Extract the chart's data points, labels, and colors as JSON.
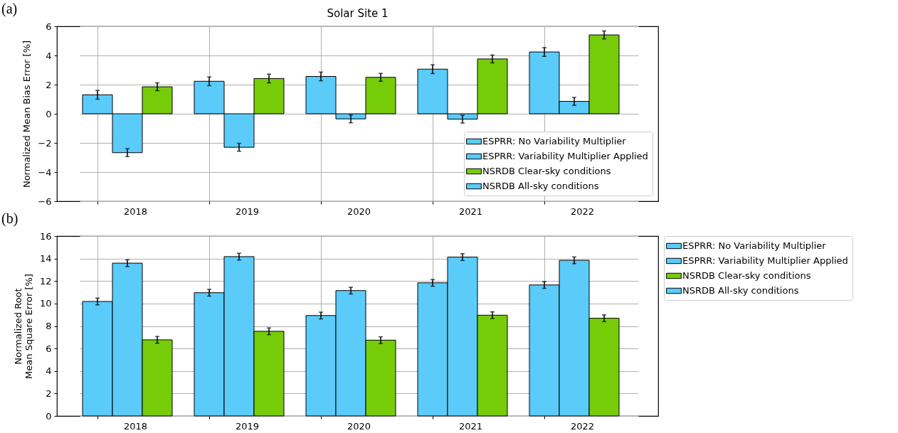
{
  "chart_data": [
    {
      "type": "bar",
      "title": "Solar Site 1",
      "ylabel": "Normalized Mean Bias Error [%]",
      "annotations": [
        "(a)"
      ],
      "categories": [
        "2018",
        "2019",
        "2020",
        "2021",
        "2022"
      ],
      "series": [
        {
          "name": "ESPRR: No Variability Multiplier",
          "color": "#5bcbfa",
          "values": [
            1.3,
            2.23,
            2.56,
            3.06,
            4.24
          ],
          "errors": [
            0.3,
            0.3,
            0.3,
            0.3,
            0.3
          ]
        },
        {
          "name": "ESPRR: Variability Multiplier Applied",
          "color": "#5bcbfa",
          "values": [
            -2.67,
            -2.3,
            -0.35,
            -0.37,
            0.85
          ],
          "errors": [
            0.27,
            0.27,
            0.27,
            0.27,
            0.27
          ]
        },
        {
          "name": "NSRDB Clear-sky conditions",
          "color": "#77cc0a",
          "values": [
            1.85,
            2.42,
            2.5,
            3.76,
            5.41
          ],
          "errors": [
            0.27,
            0.3,
            0.27,
            0.27,
            0.27
          ]
        },
        {
          "name": "NSRDB All-sky conditions",
          "color": "#5bcbfa",
          "values": [
            null,
            null,
            null,
            null,
            null
          ]
        }
      ],
      "ylim": [
        -6,
        6
      ],
      "yticks": [
        -6,
        -4,
        -2,
        0,
        2,
        4,
        6
      ],
      "grid": true,
      "legend": "bottom right"
    },
    {
      "type": "bar",
      "ylabel": "Normalized Root\nMean Square Error [%]",
      "annotations": [
        "(b)"
      ],
      "categories": [
        "2018",
        "2019",
        "2020",
        "2021",
        "2022"
      ],
      "series": [
        {
          "name": "ESPRR: No Variability Multiplier",
          "color": "#5bcbfa",
          "values": [
            10.18,
            10.96,
            8.93,
            11.84,
            11.65
          ],
          "errors": [
            0.3,
            0.3,
            0.3,
            0.3,
            0.3
          ]
        },
        {
          "name": "ESPRR: Variability Multiplier Applied",
          "color": "#5bcbfa",
          "values": [
            13.59,
            14.17,
            11.15,
            14.13,
            13.84
          ],
          "errors": [
            0.3,
            0.3,
            0.3,
            0.3,
            0.3
          ]
        },
        {
          "name": "NSRDB Clear-sky conditions",
          "color": "#77cc0a",
          "values": [
            6.77,
            7.53,
            6.74,
            8.96,
            8.69
          ],
          "errors": [
            0.3,
            0.3,
            0.3,
            0.3,
            0.3
          ]
        },
        {
          "name": "NSRDB All-sky conditions",
          "color": "#5bcbfa",
          "values": [
            null,
            null,
            null,
            null,
            null
          ]
        }
      ],
      "ylim": [
        0,
        16
      ],
      "yticks": [
        0,
        2,
        4,
        6,
        8,
        10,
        12,
        14,
        16
      ],
      "grid": true,
      "legend": "right"
    }
  ]
}
